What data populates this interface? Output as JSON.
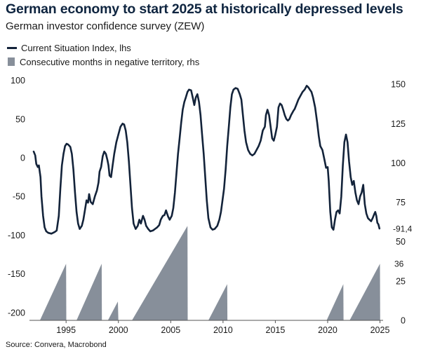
{
  "title": "German economy to start 2025 at historically depressed levels",
  "subtitle": "German investor confidence survey (ZEW)",
  "source": "Source: Convera, Macrobond",
  "chart_data": {
    "type": "line+area",
    "x_axis": {
      "range": [
        1991.5,
        2025.3
      ],
      "ticks": [
        1995,
        2000,
        2005,
        2010,
        2015,
        2020,
        2025
      ]
    },
    "y_left": {
      "range": [
        -210,
        105
      ],
      "ticks": [
        100,
        50,
        0,
        -50,
        -100,
        -150,
        -200
      ]
    },
    "y_right": {
      "range": [
        0,
        155
      ],
      "ticks": [
        150,
        125,
        100,
        75,
        50,
        25,
        0
      ]
    },
    "colors": {
      "line": "#13233a",
      "area": "#878f9a",
      "title": "#0f2540"
    },
    "series": [
      {
        "name": "Current Situation Index, lhs",
        "axis": "left",
        "type": "line",
        "points": [
          [
            1991.9,
            8
          ],
          [
            1992.05,
            3
          ],
          [
            1992.15,
            -8
          ],
          [
            1992.3,
            -12
          ],
          [
            1992.4,
            -10
          ],
          [
            1992.55,
            -25
          ],
          [
            1992.65,
            -50
          ],
          [
            1992.8,
            -75
          ],
          [
            1992.95,
            -90
          ],
          [
            1993.1,
            -95
          ],
          [
            1993.3,
            -97
          ],
          [
            1993.6,
            -98
          ],
          [
            1993.9,
            -96
          ],
          [
            1994.1,
            -94
          ],
          [
            1994.3,
            -75
          ],
          [
            1994.45,
            -40
          ],
          [
            1994.6,
            -10
          ],
          [
            1994.75,
            5
          ],
          [
            1994.9,
            15
          ],
          [
            1995.05,
            18
          ],
          [
            1995.2,
            17
          ],
          [
            1995.4,
            14
          ],
          [
            1995.55,
            5
          ],
          [
            1995.7,
            -15
          ],
          [
            1995.85,
            -45
          ],
          [
            1996.0,
            -70
          ],
          [
            1996.15,
            -85
          ],
          [
            1996.3,
            -92
          ],
          [
            1996.5,
            -88
          ],
          [
            1996.65,
            -80
          ],
          [
            1996.8,
            -68
          ],
          [
            1996.95,
            -55
          ],
          [
            1997.1,
            -58
          ],
          [
            1997.2,
            -47
          ],
          [
            1997.35,
            -57
          ],
          [
            1997.55,
            -60
          ],
          [
            1997.75,
            -50
          ],
          [
            1997.95,
            -42
          ],
          [
            1998.1,
            -32
          ],
          [
            1998.2,
            -18
          ],
          [
            1998.35,
            -12
          ],
          [
            1998.5,
            2
          ],
          [
            1998.65,
            8
          ],
          [
            1998.8,
            5
          ],
          [
            1998.95,
            -3
          ],
          [
            1999.05,
            -10
          ],
          [
            1999.15,
            -23
          ],
          [
            1999.3,
            -25
          ],
          [
            1999.45,
            -10
          ],
          [
            1999.6,
            5
          ],
          [
            1999.8,
            20
          ],
          [
            2000.0,
            30
          ],
          [
            2000.2,
            40
          ],
          [
            2000.4,
            44
          ],
          [
            2000.55,
            43
          ],
          [
            2000.7,
            35
          ],
          [
            2000.85,
            20
          ],
          [
            2001.0,
            -5
          ],
          [
            2001.15,
            -35
          ],
          [
            2001.3,
            -65
          ],
          [
            2001.45,
            -85
          ],
          [
            2001.65,
            -92
          ],
          [
            2001.85,
            -88
          ],
          [
            2002.0,
            -80
          ],
          [
            2002.15,
            -85
          ],
          [
            2002.35,
            -75
          ],
          [
            2002.5,
            -80
          ],
          [
            2002.65,
            -88
          ],
          [
            2002.85,
            -92
          ],
          [
            2003.05,
            -95
          ],
          [
            2003.3,
            -94
          ],
          [
            2003.5,
            -92
          ],
          [
            2003.7,
            -90
          ],
          [
            2003.9,
            -87
          ],
          [
            2004.05,
            -80
          ],
          [
            2004.25,
            -75
          ],
          [
            2004.4,
            -74
          ],
          [
            2004.55,
            -68
          ],
          [
            2004.75,
            -76
          ],
          [
            2004.9,
            -80
          ],
          [
            2005.1,
            -75
          ],
          [
            2005.25,
            -65
          ],
          [
            2005.4,
            -45
          ],
          [
            2005.55,
            -20
          ],
          [
            2005.7,
            5
          ],
          [
            2005.85,
            25
          ],
          [
            2006.0,
            45
          ],
          [
            2006.15,
            62
          ],
          [
            2006.3,
            72
          ],
          [
            2006.45,
            78
          ],
          [
            2006.6,
            85
          ],
          [
            2006.75,
            88
          ],
          [
            2006.95,
            87
          ],
          [
            2007.1,
            78
          ],
          [
            2007.25,
            68
          ],
          [
            2007.4,
            78
          ],
          [
            2007.55,
            82
          ],
          [
            2007.7,
            72
          ],
          [
            2007.85,
            55
          ],
          [
            2008.0,
            30
          ],
          [
            2008.15,
            5
          ],
          [
            2008.3,
            -25
          ],
          [
            2008.45,
            -55
          ],
          [
            2008.6,
            -78
          ],
          [
            2008.8,
            -90
          ],
          [
            2009.0,
            -93
          ],
          [
            2009.2,
            -92
          ],
          [
            2009.45,
            -88
          ],
          [
            2009.65,
            -80
          ],
          [
            2009.8,
            -70
          ],
          [
            2009.95,
            -55
          ],
          [
            2010.1,
            -40
          ],
          [
            2010.25,
            -15
          ],
          [
            2010.4,
            15
          ],
          [
            2010.55,
            40
          ],
          [
            2010.7,
            65
          ],
          [
            2010.85,
            82
          ],
          [
            2011.0,
            88
          ],
          [
            2011.2,
            90
          ],
          [
            2011.4,
            89
          ],
          [
            2011.6,
            82
          ],
          [
            2011.75,
            75
          ],
          [
            2011.9,
            55
          ],
          [
            2012.05,
            35
          ],
          [
            2012.2,
            20
          ],
          [
            2012.4,
            10
          ],
          [
            2012.6,
            5
          ],
          [
            2012.8,
            3
          ],
          [
            2013.0,
            5
          ],
          [
            2013.2,
            10
          ],
          [
            2013.4,
            15
          ],
          [
            2013.6,
            22
          ],
          [
            2013.8,
            35
          ],
          [
            2014.0,
            40
          ],
          [
            2014.1,
            55
          ],
          [
            2014.25,
            62
          ],
          [
            2014.4,
            55
          ],
          [
            2014.55,
            40
          ],
          [
            2014.7,
            25
          ],
          [
            2014.85,
            22
          ],
          [
            2015.0,
            30
          ],
          [
            2015.15,
            40
          ],
          [
            2015.3,
            65
          ],
          [
            2015.45,
            70
          ],
          [
            2015.6,
            68
          ],
          [
            2015.75,
            62
          ],
          [
            2015.9,
            55
          ],
          [
            2016.05,
            50
          ],
          [
            2016.2,
            48
          ],
          [
            2016.35,
            50
          ],
          [
            2016.5,
            55
          ],
          [
            2016.7,
            60
          ],
          [
            2016.85,
            63
          ],
          [
            2017.0,
            68
          ],
          [
            2017.2,
            75
          ],
          [
            2017.4,
            80
          ],
          [
            2017.6,
            85
          ],
          [
            2017.8,
            88
          ],
          [
            2018.0,
            93
          ],
          [
            2018.15,
            91
          ],
          [
            2018.3,
            88
          ],
          [
            2018.45,
            85
          ],
          [
            2018.6,
            78
          ],
          [
            2018.8,
            65
          ],
          [
            2019.0,
            45
          ],
          [
            2019.15,
            28
          ],
          [
            2019.3,
            15
          ],
          [
            2019.5,
            10
          ],
          [
            2019.7,
            -3
          ],
          [
            2019.85,
            -13
          ],
          [
            2020.0,
            -12
          ],
          [
            2020.1,
            -30
          ],
          [
            2020.25,
            -70
          ],
          [
            2020.4,
            -90
          ],
          [
            2020.55,
            -93
          ],
          [
            2020.7,
            -80
          ],
          [
            2020.85,
            -70
          ],
          [
            2021.0,
            -68
          ],
          [
            2021.15,
            -72
          ],
          [
            2021.3,
            -50
          ],
          [
            2021.45,
            -10
          ],
          [
            2021.6,
            20
          ],
          [
            2021.75,
            30
          ],
          [
            2021.9,
            20
          ],
          [
            2022.05,
            -5
          ],
          [
            2022.2,
            -25
          ],
          [
            2022.35,
            -35
          ],
          [
            2022.5,
            -30
          ],
          [
            2022.65,
            -45
          ],
          [
            2022.8,
            -55
          ],
          [
            2022.95,
            -60
          ],
          [
            2023.1,
            -50
          ],
          [
            2023.25,
            -45
          ],
          [
            2023.4,
            -35
          ],
          [
            2023.55,
            -60
          ],
          [
            2023.7,
            -72
          ],
          [
            2023.85,
            -78
          ],
          [
            2024.0,
            -80
          ],
          [
            2024.15,
            -82
          ],
          [
            2024.3,
            -78
          ],
          [
            2024.45,
            -73
          ],
          [
            2024.55,
            -70
          ],
          [
            2024.65,
            -75
          ],
          [
            2024.75,
            -84
          ],
          [
            2024.85,
            -86
          ],
          [
            2024.95,
            -91.4
          ]
        ]
      },
      {
        "name": "Consecutive months in negative territory, rhs",
        "axis": "right",
        "type": "area",
        "polygons": [
          [
            [
              1992.5,
              0
            ],
            [
              1995.0,
              36
            ],
            [
              1995.02,
              0
            ]
          ],
          [
            [
              1996.0,
              0
            ],
            [
              1998.4,
              36
            ],
            [
              1998.42,
              0
            ]
          ],
          [
            [
              1999.0,
              0
            ],
            [
              1999.95,
              12
            ],
            [
              2000.0,
              0
            ]
          ],
          [
            [
              2001.3,
              0
            ],
            [
              2006.6,
              60
            ],
            [
              2006.62,
              0
            ]
          ],
          [
            [
              2008.6,
              0
            ],
            [
              2010.4,
              23
            ],
            [
              2010.42,
              0
            ]
          ],
          [
            [
              2019.9,
              0
            ],
            [
              2021.5,
              23
            ],
            [
              2021.52,
              0
            ]
          ],
          [
            [
              2022.1,
              0
            ],
            [
              2025.0,
              36
            ],
            [
              2025.02,
              0
            ]
          ]
        ]
      }
    ],
    "annotations": {
      "last_value": "-91,4",
      "last_months": "36"
    }
  }
}
